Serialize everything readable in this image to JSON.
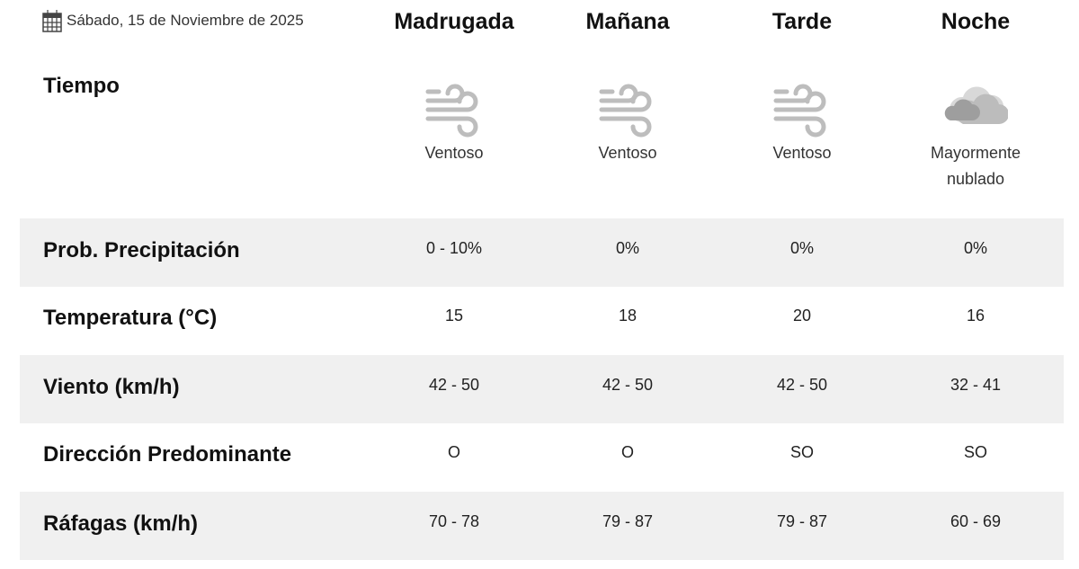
{
  "date": "Sábado, 15 de Noviembre de 2025",
  "periods": [
    "Madrugada",
    "Mañana",
    "Tarde",
    "Noche"
  ],
  "weather": {
    "label": "Tiempo",
    "items": [
      {
        "icon": "wind-icon",
        "desc": "Ventoso"
      },
      {
        "icon": "wind-icon",
        "desc": "Ventoso"
      },
      {
        "icon": "wind-icon",
        "desc": "Ventoso"
      },
      {
        "icon": "mostly-cloudy-icon",
        "desc": "Mayormente nublado"
      }
    ]
  },
  "rows": [
    {
      "label": "Prob. Precipitación",
      "values": [
        "0 - 10%",
        "0%",
        "0%",
        "0%"
      ]
    },
    {
      "label": "Temperatura (°C)",
      "values": [
        "15",
        "18",
        "20",
        "16"
      ]
    },
    {
      "label": "Viento (km/h)",
      "values": [
        "42 - 50",
        "42 - 50",
        "42 - 50",
        "32 - 41"
      ]
    },
    {
      "label": "Dirección Predominante",
      "values": [
        "O",
        "O",
        "SO",
        "SO"
      ]
    },
    {
      "label": "Ráfagas (km/h)",
      "values": [
        "70 - 78",
        "79 - 87",
        "79 - 87",
        "60 - 69"
      ]
    }
  ],
  "colors": {
    "stripe": "#f0f0f0",
    "icon": "#bdbdbd"
  }
}
